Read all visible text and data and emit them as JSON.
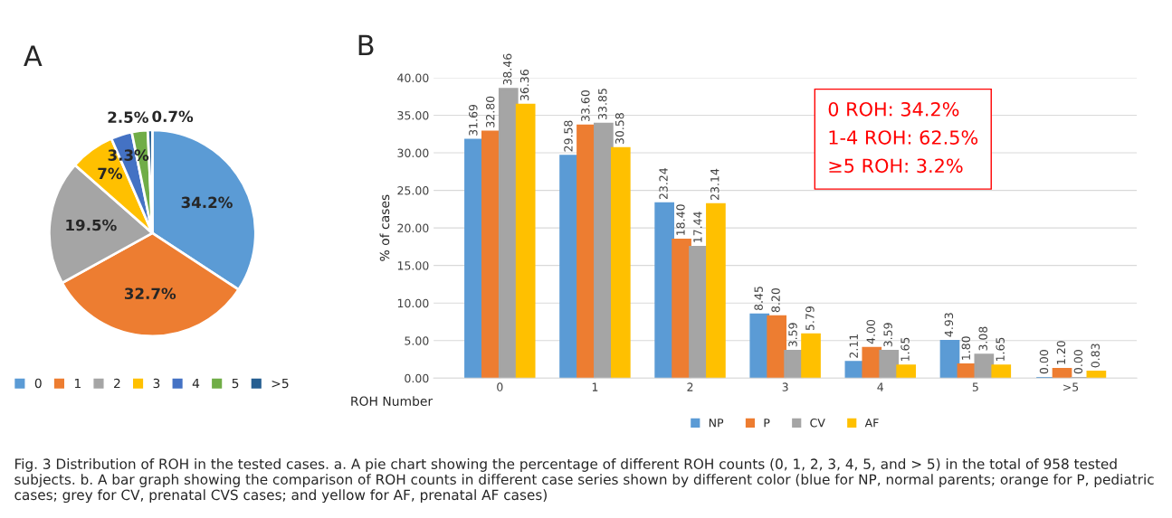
{
  "chart_data": [
    {
      "type": "pie",
      "title": "A",
      "categories": [
        "0",
        "1",
        "2",
        "3",
        "4",
        "5",
        ">5"
      ],
      "values": [
        34.2,
        32.7,
        19.5,
        7,
        3.3,
        2.5,
        0.7
      ],
      "colors": [
        "#5b9bd5",
        "#ed7d31",
        "#a5a5a5",
        "#ffc000",
        "#4472c4",
        "#70ad47",
        "#255e91"
      ],
      "value_labels": [
        "34.2%",
        "32.7%",
        "19.5%",
        "7%",
        "3.3%",
        "2.5%",
        "0.7%"
      ],
      "legend": "bottom"
    },
    {
      "type": "bar",
      "title": "B",
      "categories": [
        "0",
        "1",
        "2",
        "3",
        "4",
        "5",
        ">5"
      ],
      "xlabel": "ROH Number",
      "ylabel": "% of cases",
      "series": [
        {
          "name": "NP",
          "color": "#5b9bd5",
          "values": [
            31.69,
            29.58,
            23.24,
            8.45,
            2.11,
            4.93,
            0.0
          ],
          "value_labels": [
            "31.69",
            "29.58",
            "23.24",
            "8.45",
            "2.11",
            "4.93",
            "0.00"
          ]
        },
        {
          "name": "P",
          "color": "#ed7d31",
          "values": [
            32.8,
            33.6,
            18.4,
            8.2,
            4.0,
            1.8,
            1.2
          ],
          "value_labels": [
            "32.80",
            "33.60",
            "18.40",
            "8.20",
            "4.00",
            "1.80",
            "1.20"
          ]
        },
        {
          "name": "CV",
          "color": "#a5a5a5",
          "values": [
            38.46,
            33.85,
            17.44,
            3.59,
            3.59,
            3.08,
            0.0
          ],
          "value_labels": [
            "38.46",
            "33.85",
            "17.44",
            "3.59",
            "3.59",
            "3.08",
            "0.00"
          ]
        },
        {
          "name": "AF",
          "color": "#ffc000",
          "values": [
            36.36,
            30.58,
            23.14,
            5.79,
            1.65,
            1.65,
            0.83
          ],
          "value_labels": [
            "36.36",
            "30.58",
            "23.14",
            "5.79",
            "1.65",
            "1.65",
            "0.83"
          ]
        }
      ],
      "ylim": [
        0,
        40
      ],
      "yticks": [
        {
          "value": 0,
          "label": "0.00"
        },
        {
          "value": 5,
          "label": "5.00"
        },
        {
          "value": 10,
          "label": "10.00"
        },
        {
          "value": 15,
          "label": "15.00"
        },
        {
          "value": 20,
          "label": "20.00"
        },
        {
          "value": 25,
          "label": "25.00"
        },
        {
          "value": 30,
          "label": "30.00"
        },
        {
          "value": 35,
          "label": "35.00"
        },
        {
          "value": 40,
          "label": "40.00"
        }
      ],
      "grid": "y",
      "legend": "bottom",
      "annotations": [
        "0 ROH: 34.2%\n1-4 ROH: 62.5%\n≥5 ROH: 3.2%",
        "Fig. 3 Distribution of ROH in the tested cases. a. A pie chart showing the percentage of different ROH counts (0, 1, 2, 3, 4, 5, and > 5) in the total of 958 tested subjects. b. A bar graph showing the comparison of ROH counts in different case series shown by different color (blue for NP, normal parents; orange for P, pediatric cases; grey for CV, prenatal CVS cases; and yellow for AF, prenatal AF cases)"
      ]
    }
  ]
}
